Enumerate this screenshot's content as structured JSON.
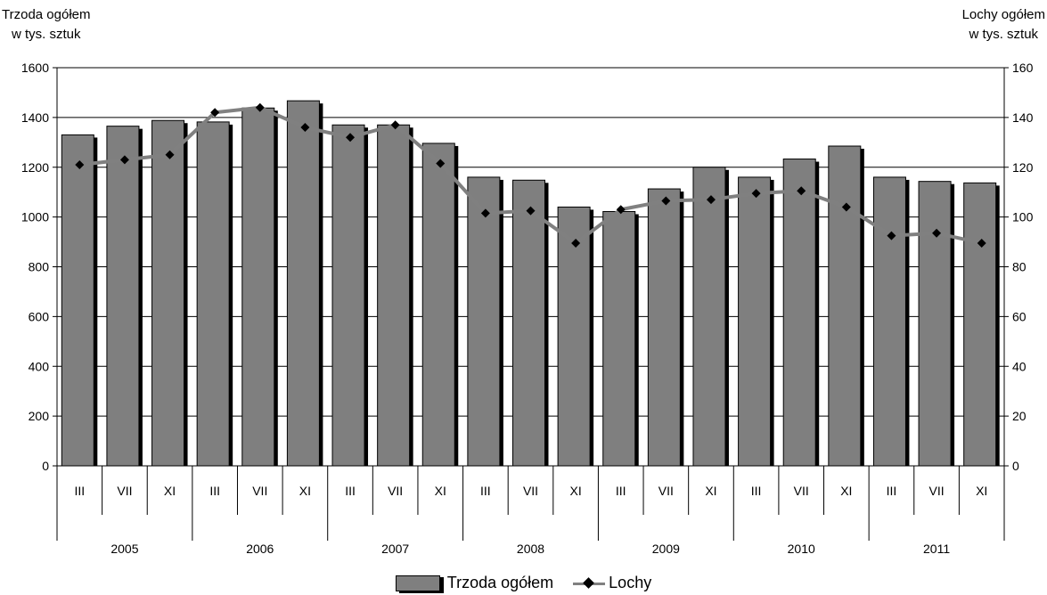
{
  "chart_data": {
    "type": "bar",
    "left_axis_title": [
      "Trzoda ogółem",
      "w tys. sztuk"
    ],
    "right_axis_title": [
      "Lochy ogółem",
      "w tys. sztuk"
    ],
    "left_ylim": [
      0,
      1600
    ],
    "right_ylim": [
      0,
      160
    ],
    "left_ticks": [
      "0",
      "200",
      "400",
      "600",
      "800",
      "1000",
      "1200",
      "1400",
      "1600"
    ],
    "right_ticks": [
      "0",
      "20",
      "40",
      "60",
      "80",
      "100",
      "120",
      "140",
      "160"
    ],
    "grid": true,
    "legend_position": "bottom",
    "years": [
      "2005",
      "2006",
      "2007",
      "2008",
      "2009",
      "2010",
      "2011"
    ],
    "months": [
      "III",
      "VII",
      "XI"
    ],
    "categories": [
      "III 2005",
      "VII 2005",
      "XI 2005",
      "III 2006",
      "VII 2006",
      "XI 2006",
      "III 2007",
      "VII 2007",
      "XI 2007",
      "III 2008",
      "VII 2008",
      "XI 2008",
      "III 2009",
      "VII 2009",
      "XI 2009",
      "III 2010",
      "VII 2010",
      "XI 2010",
      "III 2011",
      "VII 2011",
      "XI 2011"
    ],
    "series": [
      {
        "name": "Trzoda ogółem",
        "kind": "bar",
        "axis": "left",
        "color": "#7f7f7f",
        "values": [
          1330,
          1365,
          1388,
          1382,
          1438,
          1467,
          1370,
          1370,
          1296,
          1160,
          1148,
          1040,
          1022,
          1113,
          1200,
          1160,
          1233,
          1285,
          1160,
          1143,
          1137
        ]
      },
      {
        "name": "Lochy",
        "kind": "line",
        "axis": "right",
        "color": "#808080",
        "marker_color": "#000000",
        "values": [
          121,
          123,
          125,
          142,
          144,
          136,
          132,
          137,
          121.5,
          101.5,
          102.5,
          89.5,
          103,
          106.5,
          107,
          109.5,
          110.5,
          104,
          92.5,
          93.5,
          89.5
        ]
      }
    ]
  }
}
